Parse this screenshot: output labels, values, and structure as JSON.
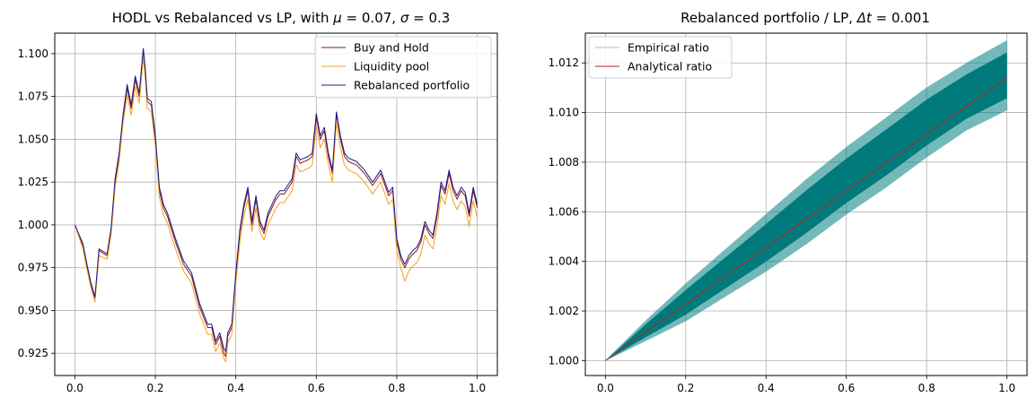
{
  "chart_data": [
    {
      "type": "line",
      "title": "HODL vs Rebalanced vs LP, with μ = 0.07, σ = 0.3",
      "title_parts": {
        "prefix": "HODL vs Rebalanced vs LP, with ",
        "mu_symbol": "μ",
        "mu_eq": " = 0.07, ",
        "sigma_symbol": "σ",
        "sigma_eq": " = 0.3"
      },
      "xlabel": "",
      "ylabel": "",
      "xlim": [
        -0.05,
        1.05
      ],
      "ylim": [
        0.912,
        1.112
      ],
      "grid": true,
      "legend_placement": "top-right",
      "x_ticks": [
        0.0,
        0.2,
        0.4,
        0.6,
        0.8,
        1.0
      ],
      "x_tick_labels": [
        "0.0",
        "0.2",
        "0.4",
        "0.6",
        "0.8",
        "1.0"
      ],
      "y_ticks": [
        0.925,
        0.95,
        0.975,
        1.0,
        1.025,
        1.05,
        1.075,
        1.1
      ],
      "y_tick_labels": [
        "0.925",
        "0.950",
        "0.975",
        "1.000",
        "1.025",
        "1.050",
        "1.075",
        "1.100"
      ],
      "x": [
        0.0,
        0.02,
        0.03,
        0.04,
        0.05,
        0.06,
        0.08,
        0.09,
        0.1,
        0.11,
        0.12,
        0.13,
        0.14,
        0.15,
        0.16,
        0.17,
        0.175,
        0.18,
        0.19,
        0.2,
        0.21,
        0.22,
        0.23,
        0.25,
        0.27,
        0.29,
        0.31,
        0.33,
        0.34,
        0.35,
        0.36,
        0.37,
        0.375,
        0.38,
        0.39,
        0.4,
        0.41,
        0.42,
        0.43,
        0.44,
        0.45,
        0.46,
        0.47,
        0.48,
        0.5,
        0.51,
        0.52,
        0.54,
        0.55,
        0.56,
        0.58,
        0.59,
        0.6,
        0.61,
        0.62,
        0.63,
        0.64,
        0.65,
        0.66,
        0.67,
        0.68,
        0.7,
        0.72,
        0.74,
        0.76,
        0.78,
        0.79,
        0.8,
        0.81,
        0.82,
        0.83,
        0.84,
        0.85,
        0.86,
        0.87,
        0.88,
        0.89,
        0.9,
        0.91,
        0.92,
        0.93,
        0.94,
        0.95,
        0.96,
        0.97,
        0.98,
        0.99,
        1.0
      ],
      "series": [
        {
          "name": "Buy and Hold",
          "color": "#8b1a1a",
          "values": [
            1.0,
            0.988,
            0.976,
            0.965,
            0.957,
            0.985,
            0.982,
            0.997,
            1.025,
            1.04,
            1.063,
            1.08,
            1.068,
            1.085,
            1.075,
            1.103,
            1.09,
            1.072,
            1.07,
            1.05,
            1.02,
            1.01,
            1.005,
            0.99,
            0.977,
            0.97,
            0.952,
            0.94,
            0.94,
            0.93,
            0.935,
            0.925,
            0.923,
            0.935,
            0.94,
            0.97,
            0.995,
            1.01,
            1.02,
            1.0,
            1.015,
            1.0,
            0.995,
            1.005,
            1.015,
            1.018,
            1.018,
            1.025,
            1.04,
            1.036,
            1.038,
            1.04,
            1.063,
            1.05,
            1.055,
            1.04,
            1.03,
            1.065,
            1.05,
            1.04,
            1.037,
            1.035,
            1.03,
            1.023,
            1.03,
            1.017,
            1.02,
            0.99,
            0.98,
            0.975,
            0.98,
            0.983,
            0.985,
            0.99,
            1.0,
            0.995,
            0.992,
            1.005,
            1.023,
            1.018,
            1.03,
            1.02,
            1.015,
            1.02,
            1.017,
            1.005,
            1.02,
            1.01
          ]
        },
        {
          "name": "Liquidity pool",
          "color": "#f5a020",
          "values": [
            1.0,
            0.986,
            0.974,
            0.963,
            0.955,
            0.982,
            0.98,
            0.994,
            1.022,
            1.037,
            1.06,
            1.076,
            1.064,
            1.081,
            1.071,
            1.098,
            1.085,
            1.068,
            1.066,
            1.046,
            1.016,
            1.006,
            1.001,
            0.986,
            0.973,
            0.966,
            0.948,
            0.936,
            0.936,
            0.926,
            0.931,
            0.922,
            0.92,
            0.931,
            0.936,
            0.966,
            0.99,
            1.005,
            1.015,
            0.996,
            1.01,
            0.996,
            0.991,
            1.0,
            1.01,
            1.013,
            1.013,
            1.02,
            1.035,
            1.031,
            1.033,
            1.035,
            1.058,
            1.045,
            1.05,
            1.035,
            1.025,
            1.06,
            1.045,
            1.035,
            1.032,
            1.03,
            1.025,
            1.018,
            1.025,
            1.012,
            1.015,
            0.985,
            0.975,
            0.967,
            0.973,
            0.976,
            0.978,
            0.983,
            0.994,
            0.989,
            0.986,
            0.999,
            1.017,
            1.012,
            1.024,
            1.014,
            1.009,
            1.014,
            1.011,
            0.999,
            1.014,
            1.004
          ]
        },
        {
          "name": "Rebalanced portfolio",
          "color": "#1a1a8c",
          "values": [
            1.0,
            0.989,
            0.977,
            0.966,
            0.958,
            0.986,
            0.983,
            0.998,
            1.027,
            1.042,
            1.065,
            1.082,
            1.07,
            1.087,
            1.077,
            1.103,
            1.091,
            1.074,
            1.072,
            1.052,
            1.022,
            1.012,
            1.007,
            0.992,
            0.979,
            0.972,
            0.954,
            0.942,
            0.942,
            0.932,
            0.937,
            0.928,
            0.926,
            0.937,
            0.942,
            0.972,
            0.997,
            1.012,
            1.022,
            1.002,
            1.017,
            1.002,
            0.997,
            1.007,
            1.017,
            1.02,
            1.02,
            1.027,
            1.042,
            1.038,
            1.04,
            1.042,
            1.065,
            1.052,
            1.057,
            1.042,
            1.032,
            1.066,
            1.052,
            1.042,
            1.039,
            1.037,
            1.032,
            1.025,
            1.032,
            1.019,
            1.022,
            0.992,
            0.982,
            0.977,
            0.982,
            0.985,
            0.987,
            0.992,
            1.002,
            0.997,
            0.994,
            1.007,
            1.025,
            1.02,
            1.032,
            1.022,
            1.017,
            1.022,
            1.019,
            1.007,
            1.022,
            1.012
          ]
        }
      ]
    },
    {
      "type": "line",
      "title": "Rebalanced portfolio / LP, Δt = 0.001",
      "title_parts": {
        "prefix": "Rebalanced portfolio / LP, ",
        "dt_symbol": "Δt",
        "dt_eq": " = 0.001"
      },
      "xlabel": "",
      "ylabel": "",
      "xlim": [
        -0.05,
        1.05
      ],
      "ylim": [
        0.9994,
        1.0132
      ],
      "grid": true,
      "legend_placement": "top-left",
      "x_ticks": [
        0.0,
        0.2,
        0.4,
        0.6,
        0.8,
        1.0
      ],
      "x_tick_labels": [
        "0.0",
        "0.2",
        "0.4",
        "0.6",
        "0.8",
        "1.0"
      ],
      "y_ticks": [
        1.0,
        1.002,
        1.004,
        1.006,
        1.008,
        1.01,
        1.012
      ],
      "y_tick_labels": [
        "1.000",
        "1.002",
        "1.004",
        "1.006",
        "1.008",
        "1.010",
        "1.012"
      ],
      "empirical_band": {
        "x": [
          0.0,
          0.1,
          0.2,
          0.3,
          0.4,
          0.5,
          0.6,
          0.7,
          0.8,
          0.9,
          1.0
        ],
        "upper": [
          1.0,
          1.0016,
          1.0031,
          1.0045,
          1.0059,
          1.0073,
          1.0086,
          1.0098,
          1.011,
          1.012,
          1.0129
        ],
        "lower": [
          1.0,
          1.0008,
          1.0016,
          1.0026,
          1.0036,
          1.0047,
          1.0059,
          1.007,
          1.0082,
          1.0093,
          1.0101
        ]
      },
      "series": [
        {
          "name": "Empirical ratio",
          "color": "#008080",
          "values": []
        },
        {
          "name": "Analytical ratio",
          "color": "#b22222",
          "x": [
            0.0,
            1.0
          ],
          "values": [
            1.0,
            1.0114
          ]
        }
      ]
    }
  ]
}
